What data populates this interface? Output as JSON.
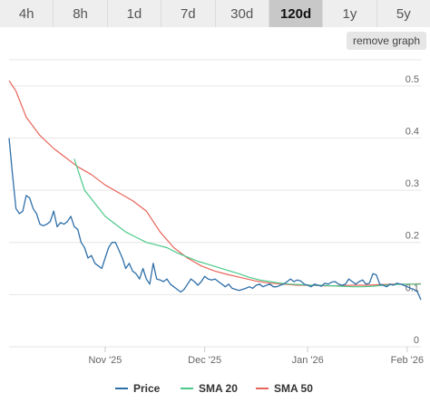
{
  "range_tabs": [
    {
      "label": "4h"
    },
    {
      "label": "8h"
    },
    {
      "label": "1d"
    },
    {
      "label": "7d"
    },
    {
      "label": "30d"
    },
    {
      "label": "120d",
      "active": true
    },
    {
      "label": "1y"
    },
    {
      "label": "5y"
    }
  ],
  "remove_graph_label": "remove graph",
  "chart_data": {
    "type": "line",
    "title": "",
    "xlabel": "",
    "ylabel": "",
    "x_ticks": [
      "Nov '25",
      "Dec '25",
      "Jan '26",
      "Feb '26"
    ],
    "y_ticks": [
      "0",
      "0.1",
      "0.2",
      "0.3",
      "0.4",
      "0.5"
    ],
    "ylim": [
      0,
      0.5
    ],
    "grid": true,
    "legend_position": "bottom",
    "series": [
      {
        "name": "Price",
        "color": "#2f6fa8",
        "x": [
          0,
          1,
          2,
          3,
          4,
          5,
          6,
          7,
          8,
          9,
          10,
          11,
          12,
          13,
          14,
          15,
          16,
          17,
          18,
          19,
          20,
          21,
          22,
          23,
          24,
          25,
          26,
          27,
          28,
          29,
          30,
          31,
          32,
          33,
          34,
          35,
          36,
          37,
          38,
          39,
          40,
          41,
          42,
          43,
          44,
          45,
          46,
          47,
          48,
          49,
          50,
          51,
          52,
          53,
          54,
          55,
          56,
          57,
          58,
          59,
          60,
          61,
          62,
          63,
          64,
          65,
          66,
          67,
          68,
          69,
          70,
          71,
          72,
          73,
          74,
          75,
          76,
          77,
          78,
          79,
          80,
          81,
          82,
          83,
          84,
          85,
          86,
          87,
          88,
          89,
          90,
          91,
          92,
          93,
          94,
          95,
          96,
          97,
          98,
          99,
          100,
          101,
          102,
          103,
          104,
          105,
          106,
          107,
          108,
          109,
          110,
          111,
          112,
          113,
          114,
          115,
          116,
          117,
          118,
          119,
          120
        ],
        "values": [
          0.4,
          0.33,
          0.265,
          0.255,
          0.26,
          0.29,
          0.285,
          0.265,
          0.255,
          0.235,
          0.232,
          0.235,
          0.24,
          0.26,
          0.23,
          0.238,
          0.235,
          0.24,
          0.25,
          0.23,
          0.225,
          0.2,
          0.19,
          0.17,
          0.175,
          0.16,
          0.155,
          0.15,
          0.17,
          0.19,
          0.2,
          0.2,
          0.185,
          0.17,
          0.15,
          0.16,
          0.145,
          0.14,
          0.13,
          0.15,
          0.13,
          0.12,
          0.16,
          0.13,
          0.128,
          0.125,
          0.13,
          0.12,
          0.115,
          0.11,
          0.105,
          0.11,
          0.12,
          0.13,
          0.125,
          0.118,
          0.125,
          0.135,
          0.13,
          0.128,
          0.13,
          0.125,
          0.12,
          0.115,
          0.12,
          0.112,
          0.11,
          0.108,
          0.11,
          0.112,
          0.115,
          0.112,
          0.118,
          0.12,
          0.115,
          0.118,
          0.12,
          0.115,
          0.115,
          0.118,
          0.12,
          0.125,
          0.13,
          0.125,
          0.128,
          0.126,
          0.12,
          0.118,
          0.115,
          0.12,
          0.118,
          0.116,
          0.122,
          0.12,
          0.124,
          0.125,
          0.12,
          0.118,
          0.12,
          0.13,
          0.125,
          0.12,
          0.125,
          0.128,
          0.12,
          0.122,
          0.14,
          0.138,
          0.12,
          0.118,
          0.115,
          0.12,
          0.118,
          0.122,
          0.12,
          0.118,
          0.115,
          0.112,
          0.11,
          0.105,
          0.09
        ]
      },
      {
        "name": "SMA 20",
        "color": "#4bc98a",
        "x": [
          19,
          22,
          25,
          28,
          31,
          34,
          37,
          40,
          43,
          46,
          49,
          52,
          55,
          58,
          61,
          64,
          67,
          70,
          73,
          76,
          79,
          82,
          85,
          88,
          91,
          94,
          97,
          100,
          103,
          106,
          109,
          112,
          115,
          118,
          120
        ],
        "values": [
          0.36,
          0.3,
          0.275,
          0.25,
          0.235,
          0.22,
          0.21,
          0.2,
          0.195,
          0.19,
          0.18,
          0.172,
          0.164,
          0.158,
          0.152,
          0.146,
          0.14,
          0.133,
          0.128,
          0.125,
          0.122,
          0.12,
          0.119,
          0.118,
          0.118,
          0.117,
          0.116,
          0.115,
          0.115,
          0.116,
          0.118,
          0.119,
          0.12,
          0.12,
          0.12
        ]
      },
      {
        "name": "SMA 50",
        "color": "#e8645a",
        "x": [
          0,
          2,
          5,
          9,
          13,
          17,
          20,
          24,
          28,
          32,
          36,
          40,
          44,
          48,
          52,
          56,
          60,
          64,
          68,
          72,
          76,
          80,
          84,
          88,
          92,
          96,
          100,
          104,
          108,
          112,
          116,
          120
        ],
        "values": [
          0.51,
          0.49,
          0.44,
          0.405,
          0.38,
          0.36,
          0.345,
          0.33,
          0.31,
          0.295,
          0.28,
          0.26,
          0.22,
          0.19,
          0.17,
          0.155,
          0.145,
          0.138,
          0.132,
          0.126,
          0.122,
          0.12,
          0.118,
          0.118,
          0.117,
          0.117,
          0.118,
          0.118,
          0.119,
          0.12,
          0.12,
          0.121
        ]
      }
    ]
  }
}
